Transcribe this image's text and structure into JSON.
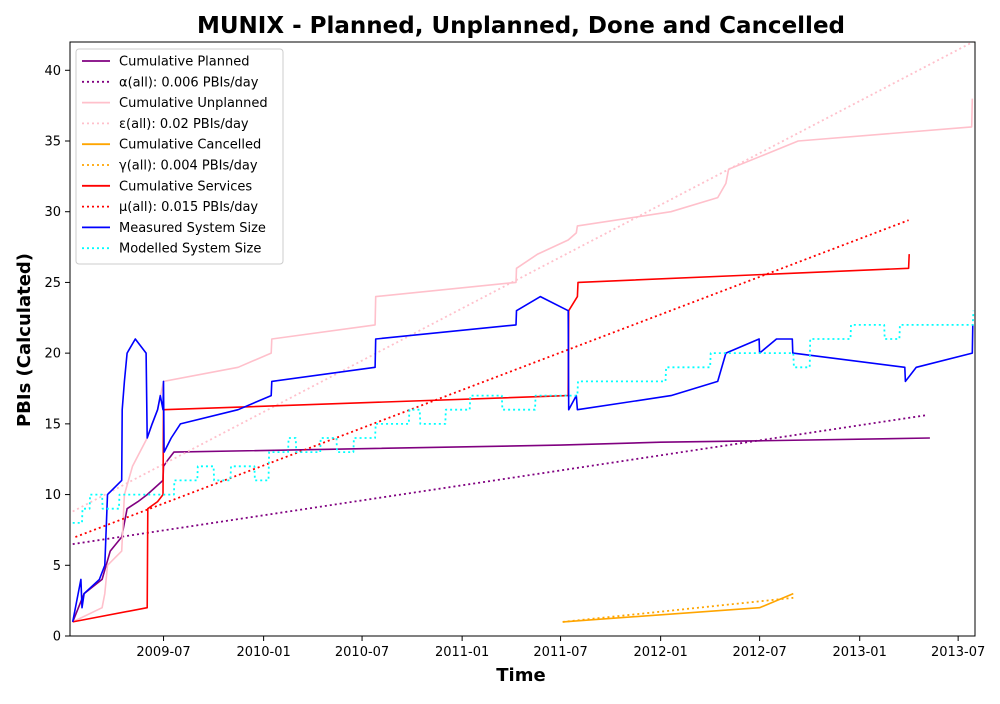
{
  "chart_data": {
    "type": "line",
    "title": "MUNIX - Planned, Unplanned, Done  and Cancelled",
    "xlabel": "Time",
    "ylabel": "PBIs (Calculated)",
    "xlim": [
      "2009-01-10",
      "2013-08-01"
    ],
    "ylim": [
      0,
      42
    ],
    "x_ticks": [
      "2009-07",
      "2010-01",
      "2010-07",
      "2011-01",
      "2011-07",
      "2012-01",
      "2012-07",
      "2013-01",
      "2013-07"
    ],
    "y_ticks": [
      0,
      5,
      10,
      15,
      20,
      25,
      30,
      35,
      40
    ],
    "grid": false,
    "legend_position": "upper-left",
    "colors": {
      "planned": "#800080",
      "unplanned": "#ffc0cb",
      "cancelled": "#ffa500",
      "services": "#ff0000",
      "measured": "#0000ff",
      "modelled": "#00ffff"
    },
    "series": [
      {
        "name": "Cumulative Planned",
        "style": "solid",
        "color": "#800080",
        "points": [
          [
            "2009-01-15",
            1
          ],
          [
            "2009-02-05",
            3
          ],
          [
            "2009-03-10",
            4
          ],
          [
            "2009-03-25",
            6
          ],
          [
            "2009-04-15",
            7
          ],
          [
            "2009-04-20",
            8
          ],
          [
            "2009-04-25",
            9
          ],
          [
            "2009-05-15",
            9.5
          ],
          [
            "2009-06-01",
            10
          ],
          [
            "2009-06-30",
            11
          ],
          [
            "2009-07-01",
            12
          ],
          [
            "2009-07-10",
            12.5
          ],
          [
            "2009-07-20",
            13
          ],
          [
            "2011-07-01",
            13.5
          ],
          [
            "2012-01-01",
            13.7
          ],
          [
            "2012-07-01",
            13.8
          ],
          [
            "2013-05-10",
            14
          ]
        ]
      },
      {
        "name": "α(all): 0.006 PBIs/day",
        "style": "dotted",
        "color": "#800080",
        "points": [
          [
            "2009-01-15",
            6.5
          ],
          [
            "2013-05-01",
            15.6
          ]
        ]
      },
      {
        "name": "Cumulative Unplanned",
        "style": "solid",
        "color": "#ffc0cb",
        "points": [
          [
            "2009-01-15",
            1
          ],
          [
            "2009-03-10",
            2
          ],
          [
            "2009-03-15",
            3
          ],
          [
            "2009-03-20",
            5
          ],
          [
            "2009-04-15",
            6
          ],
          [
            "2009-04-20",
            10
          ],
          [
            "2009-05-05",
            12
          ],
          [
            "2009-06-01",
            14
          ],
          [
            "2009-06-20",
            16
          ],
          [
            "2009-07-01",
            18
          ],
          [
            "2009-11-15",
            19
          ],
          [
            "2010-01-15",
            20
          ],
          [
            "2010-01-16",
            21
          ],
          [
            "2010-07-25",
            22
          ],
          [
            "2010-07-26",
            24
          ],
          [
            "2011-04-10",
            25
          ],
          [
            "2011-04-11",
            26
          ],
          [
            "2011-05-20",
            27
          ],
          [
            "2011-07-15",
            28
          ],
          [
            "2011-07-30",
            28.5
          ],
          [
            "2011-08-01",
            29
          ],
          [
            "2012-01-20",
            30
          ],
          [
            "2012-04-15",
            31
          ],
          [
            "2012-04-30",
            32
          ],
          [
            "2012-05-05",
            33
          ],
          [
            "2012-09-10",
            35
          ],
          [
            "2013-07-26",
            36
          ],
          [
            "2013-07-27",
            38
          ]
        ]
      },
      {
        "name": "ε(all): 0.02 PBIs/day",
        "style": "dotted",
        "color": "#ffc0cb",
        "points": [
          [
            "2009-01-15",
            8.8
          ],
          [
            "2013-07-28",
            42
          ]
        ]
      },
      {
        "name": "Cumulative Cancelled",
        "style": "solid",
        "color": "#ffa500",
        "points": [
          [
            "2011-07-05",
            1
          ],
          [
            "2012-07-01",
            2
          ],
          [
            "2012-09-01",
            3
          ]
        ]
      },
      {
        "name": "γ(all): 0.004 PBIs/day",
        "style": "dotted",
        "color": "#ffa500",
        "points": [
          [
            "2011-07-05",
            1.0
          ],
          [
            "2012-09-01",
            2.7
          ]
        ]
      },
      {
        "name": "Cumulative Services",
        "style": "solid",
        "color": "#ff0000",
        "points": [
          [
            "2009-01-15",
            1
          ],
          [
            "2009-06-01",
            2
          ],
          [
            "2009-06-02",
            9
          ],
          [
            "2009-06-20",
            9.5
          ],
          [
            "2009-06-30",
            10
          ],
          [
            "2009-07-01",
            16
          ],
          [
            "2011-07-15",
            17
          ],
          [
            "2011-07-16",
            23
          ],
          [
            "2011-08-01",
            24
          ],
          [
            "2011-08-02",
            25
          ],
          [
            "2013-04-01",
            26
          ],
          [
            "2013-04-02",
            27
          ]
        ]
      },
      {
        "name": "μ(all): 0.015 PBIs/day",
        "style": "dotted",
        "color": "#ff0000",
        "points": [
          [
            "2009-01-20",
            7.0
          ],
          [
            "2013-04-01",
            29.4
          ]
        ]
      },
      {
        "name": "Measured System Size",
        "style": "solid",
        "color": "#0000ff",
        "points": [
          [
            "2009-01-15",
            1
          ],
          [
            "2009-01-30",
            4
          ],
          [
            "2009-02-01",
            2
          ],
          [
            "2009-02-05",
            3
          ],
          [
            "2009-03-05",
            4
          ],
          [
            "2009-03-15",
            5
          ],
          [
            "2009-03-20",
            10
          ],
          [
            "2009-04-15",
            11
          ],
          [
            "2009-04-16",
            16
          ],
          [
            "2009-04-20",
            18
          ],
          [
            "2009-04-25",
            20
          ],
          [
            "2009-05-10",
            21
          ],
          [
            "2009-05-30",
            20
          ],
          [
            "2009-06-01",
            14
          ],
          [
            "2009-06-10",
            15
          ],
          [
            "2009-06-20",
            16
          ],
          [
            "2009-06-25",
            17
          ],
          [
            "2009-06-30",
            16
          ],
          [
            "2009-07-01",
            18
          ],
          [
            "2009-07-02",
            13
          ],
          [
            "2009-07-15",
            14
          ],
          [
            "2009-08-01",
            15
          ],
          [
            "2009-11-15",
            16
          ],
          [
            "2010-01-15",
            17
          ],
          [
            "2010-01-16",
            18
          ],
          [
            "2010-07-25",
            19
          ],
          [
            "2010-07-26",
            21
          ],
          [
            "2011-04-10",
            22
          ],
          [
            "2011-04-11",
            23
          ],
          [
            "2011-05-25",
            24
          ],
          [
            "2011-07-15",
            23
          ],
          [
            "2011-07-16",
            16
          ],
          [
            "2011-07-30",
            17
          ],
          [
            "2011-08-01",
            16
          ],
          [
            "2012-01-20",
            17
          ],
          [
            "2012-04-15",
            18
          ],
          [
            "2012-04-30",
            20
          ],
          [
            "2012-06-30",
            21
          ],
          [
            "2012-07-01",
            20
          ],
          [
            "2012-08-01",
            21
          ],
          [
            "2012-08-30",
            21
          ],
          [
            "2012-08-31",
            20
          ],
          [
            "2013-03-25",
            19
          ],
          [
            "2013-03-26",
            18
          ],
          [
            "2013-04-15",
            19
          ],
          [
            "2013-07-27",
            20
          ],
          [
            "2013-07-28",
            22
          ]
        ]
      },
      {
        "name": "Modelled System Size",
        "style": "dotted",
        "color": "#00ffff",
        "points": [
          [
            "2009-01-15",
            8
          ],
          [
            "2009-02-01",
            8
          ],
          [
            "2009-02-02",
            9
          ],
          [
            "2009-02-15",
            9
          ],
          [
            "2009-02-16",
            10
          ],
          [
            "2009-03-10",
            10
          ],
          [
            "2009-03-11",
            9
          ],
          [
            "2009-04-10",
            9
          ],
          [
            "2009-04-11",
            10
          ],
          [
            "2009-07-20",
            10
          ],
          [
            "2009-07-21",
            11
          ],
          [
            "2009-09-01",
            11
          ],
          [
            "2009-09-02",
            12
          ],
          [
            "2009-10-01",
            12
          ],
          [
            "2009-10-02",
            11
          ],
          [
            "2009-11-01",
            11
          ],
          [
            "2009-11-02",
            12
          ],
          [
            "2009-12-15",
            12
          ],
          [
            "2009-12-16",
            11
          ],
          [
            "2010-01-10",
            11
          ],
          [
            "2010-01-11",
            13
          ],
          [
            "2010-02-15",
            13
          ],
          [
            "2010-02-16",
            14
          ],
          [
            "2010-03-01",
            14
          ],
          [
            "2010-03-02",
            13
          ],
          [
            "2010-04-15",
            13
          ],
          [
            "2010-04-16",
            14
          ],
          [
            "2010-05-15",
            14
          ],
          [
            "2010-05-16",
            13
          ],
          [
            "2010-06-15",
            13
          ],
          [
            "2010-06-16",
            14
          ],
          [
            "2010-07-25",
            14
          ],
          [
            "2010-07-26",
            15
          ],
          [
            "2010-09-25",
            15
          ],
          [
            "2010-09-26",
            16
          ],
          [
            "2010-10-15",
            16
          ],
          [
            "2010-10-16",
            15
          ],
          [
            "2010-12-01",
            15
          ],
          [
            "2010-12-02",
            16
          ],
          [
            "2011-01-15",
            16
          ],
          [
            "2011-01-16",
            17
          ],
          [
            "2011-03-15",
            17
          ],
          [
            "2011-03-16",
            16
          ],
          [
            "2011-05-15",
            16
          ],
          [
            "2011-05-16",
            17
          ],
          [
            "2011-08-01",
            17
          ],
          [
            "2011-08-02",
            18
          ],
          [
            "2012-01-10",
            18
          ],
          [
            "2012-01-11",
            19
          ],
          [
            "2012-04-01",
            19
          ],
          [
            "2012-04-02",
            20
          ],
          [
            "2012-09-01",
            20
          ],
          [
            "2012-09-02",
            19
          ],
          [
            "2012-10-01",
            19
          ],
          [
            "2012-10-02",
            21
          ],
          [
            "2012-12-15",
            21
          ],
          [
            "2012-12-16",
            22
          ],
          [
            "2013-02-15",
            22
          ],
          [
            "2013-02-16",
            21
          ],
          [
            "2013-03-15",
            21
          ],
          [
            "2013-03-16",
            22
          ],
          [
            "2013-07-28",
            22
          ],
          [
            "2013-07-29",
            23
          ]
        ]
      }
    ]
  }
}
